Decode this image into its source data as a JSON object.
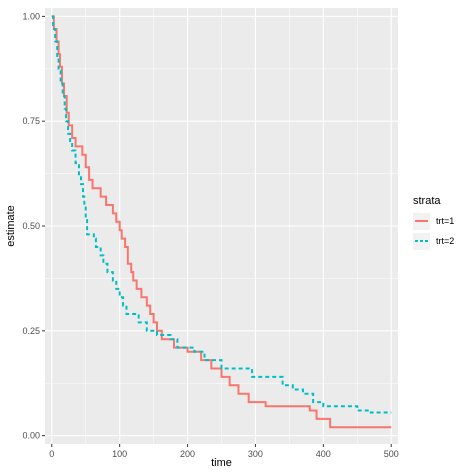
{
  "chart_data": {
    "type": "line",
    "step": true,
    "title": "",
    "xlabel": "time",
    "ylabel": "estimate",
    "xlim": [
      -10,
      510
    ],
    "ylim": [
      -0.02,
      1.02
    ],
    "x_ticks": [
      0,
      100,
      200,
      300,
      400,
      500
    ],
    "x_tick_labels": [
      "0",
      "100",
      "200",
      "300",
      "400",
      "500"
    ],
    "y_ticks": [
      0,
      0.25,
      0.5,
      0.75,
      1.0
    ],
    "y_tick_labels": [
      "0.00",
      "0.25",
      "0.50",
      "0.75",
      "1.00"
    ],
    "grid": true,
    "legend": {
      "title": "strata",
      "position": "right"
    },
    "colors": {
      "panel_bg": "#ebebeb",
      "grid": "#ffffff"
    },
    "series": [
      {
        "name": "trt=1",
        "color": "#f8766d",
        "linestyle": "solid",
        "points": [
          [
            0,
            1.0
          ],
          [
            3,
            0.97
          ],
          [
            7,
            0.94
          ],
          [
            10,
            0.91
          ],
          [
            12,
            0.88
          ],
          [
            15,
            0.84
          ],
          [
            18,
            0.81
          ],
          [
            22,
            0.77
          ],
          [
            25,
            0.74
          ],
          [
            30,
            0.71
          ],
          [
            35,
            0.69
          ],
          [
            45,
            0.67
          ],
          [
            50,
            0.64
          ],
          [
            55,
            0.61
          ],
          [
            60,
            0.59
          ],
          [
            72,
            0.57
          ],
          [
            80,
            0.55
          ],
          [
            90,
            0.53
          ],
          [
            95,
            0.51
          ],
          [
            100,
            0.49
          ],
          [
            103,
            0.47
          ],
          [
            108,
            0.45
          ],
          [
            112,
            0.41
          ],
          [
            117,
            0.39
          ],
          [
            120,
            0.37
          ],
          [
            125,
            0.35
          ],
          [
            132,
            0.33
          ],
          [
            140,
            0.31
          ],
          [
            145,
            0.29
          ],
          [
            150,
            0.27
          ],
          [
            155,
            0.25
          ],
          [
            162,
            0.23
          ],
          [
            180,
            0.21
          ],
          [
            200,
            0.2
          ],
          [
            220,
            0.18
          ],
          [
            235,
            0.16
          ],
          [
            250,
            0.14
          ],
          [
            262,
            0.12
          ],
          [
            275,
            0.1
          ],
          [
            290,
            0.08
          ],
          [
            315,
            0.07
          ],
          [
            380,
            0.06
          ],
          [
            390,
            0.04
          ],
          [
            410,
            0.02
          ],
          [
            500,
            0.02
          ]
        ]
      },
      {
        "name": "trt=2",
        "color": "#00bfc4",
        "linestyle": "dashed",
        "points": [
          [
            0,
            1.0
          ],
          [
            2,
            0.97
          ],
          [
            5,
            0.94
          ],
          [
            8,
            0.9
          ],
          [
            10,
            0.87
          ],
          [
            13,
            0.84
          ],
          [
            16,
            0.81
          ],
          [
            19,
            0.78
          ],
          [
            21,
            0.75
          ],
          [
            24,
            0.72
          ],
          [
            27,
            0.7
          ],
          [
            30,
            0.68
          ],
          [
            35,
            0.65
          ],
          [
            40,
            0.62
          ],
          [
            43,
            0.6
          ],
          [
            46,
            0.57
          ],
          [
            48,
            0.55
          ],
          [
            50,
            0.52
          ],
          [
            52,
            0.48
          ],
          [
            62,
            0.47
          ],
          [
            65,
            0.45
          ],
          [
            72,
            0.43
          ],
          [
            76,
            0.41
          ],
          [
            82,
            0.39
          ],
          [
            90,
            0.37
          ],
          [
            95,
            0.35
          ],
          [
            100,
            0.33
          ],
          [
            105,
            0.31
          ],
          [
            110,
            0.29
          ],
          [
            128,
            0.27
          ],
          [
            140,
            0.25
          ],
          [
            155,
            0.24
          ],
          [
            175,
            0.23
          ],
          [
            185,
            0.21
          ],
          [
            210,
            0.2
          ],
          [
            225,
            0.18
          ],
          [
            250,
            0.16
          ],
          [
            295,
            0.14
          ],
          [
            340,
            0.12
          ],
          [
            355,
            0.11
          ],
          [
            370,
            0.1
          ],
          [
            385,
            0.08
          ],
          [
            400,
            0.07
          ],
          [
            450,
            0.06
          ],
          [
            470,
            0.055
          ],
          [
            500,
            0.055
          ]
        ]
      }
    ]
  }
}
